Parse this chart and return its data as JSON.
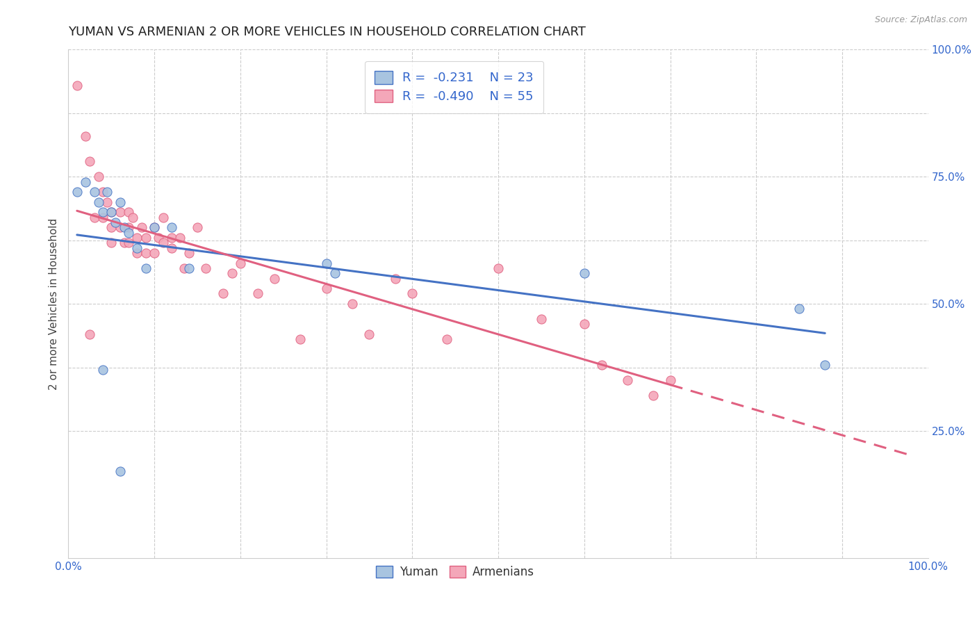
{
  "title": "YUMAN VS ARMENIAN 2 OR MORE VEHICLES IN HOUSEHOLD CORRELATION CHART",
  "source": "Source: ZipAtlas.com",
  "ylabel": "2 or more Vehicles in Household",
  "xlim": [
    0.0,
    1.0
  ],
  "ylim": [
    0.0,
    1.0
  ],
  "blue_R": -0.231,
  "blue_N": 23,
  "pink_R": -0.49,
  "pink_N": 55,
  "blue_color": "#a8c4e0",
  "pink_color": "#f4a7b9",
  "blue_line_color": "#4472c4",
  "pink_line_color": "#e06080",
  "legend_label_blue": "Yuman",
  "legend_label_pink": "Armenians",
  "blue_points_x": [
    0.01,
    0.02,
    0.03,
    0.035,
    0.04,
    0.045,
    0.05,
    0.055,
    0.06,
    0.065,
    0.07,
    0.08,
    0.09,
    0.1,
    0.12,
    0.14,
    0.3,
    0.31,
    0.6,
    0.85,
    0.88,
    0.04,
    0.06
  ],
  "blue_points_y": [
    0.72,
    0.74,
    0.72,
    0.7,
    0.68,
    0.72,
    0.68,
    0.66,
    0.7,
    0.65,
    0.64,
    0.61,
    0.57,
    0.65,
    0.65,
    0.57,
    0.58,
    0.56,
    0.56,
    0.49,
    0.38,
    0.37,
    0.17
  ],
  "pink_points_x": [
    0.01,
    0.02,
    0.025,
    0.03,
    0.035,
    0.04,
    0.04,
    0.045,
    0.05,
    0.05,
    0.05,
    0.06,
    0.06,
    0.065,
    0.07,
    0.07,
    0.07,
    0.075,
    0.08,
    0.08,
    0.085,
    0.09,
    0.09,
    0.1,
    0.1,
    0.105,
    0.11,
    0.11,
    0.12,
    0.12,
    0.13,
    0.135,
    0.14,
    0.15,
    0.16,
    0.18,
    0.19,
    0.2,
    0.22,
    0.24,
    0.27,
    0.3,
    0.33,
    0.35,
    0.38,
    0.4,
    0.44,
    0.5,
    0.55,
    0.6,
    0.62,
    0.65,
    0.68,
    0.7,
    0.025
  ],
  "pink_points_y": [
    0.93,
    0.83,
    0.78,
    0.67,
    0.75,
    0.67,
    0.72,
    0.7,
    0.68,
    0.65,
    0.62,
    0.68,
    0.65,
    0.62,
    0.68,
    0.65,
    0.62,
    0.67,
    0.63,
    0.6,
    0.65,
    0.63,
    0.6,
    0.65,
    0.6,
    0.63,
    0.62,
    0.67,
    0.63,
    0.61,
    0.63,
    0.57,
    0.6,
    0.65,
    0.57,
    0.52,
    0.56,
    0.58,
    0.52,
    0.55,
    0.43,
    0.53,
    0.5,
    0.44,
    0.55,
    0.52,
    0.43,
    0.57,
    0.47,
    0.46,
    0.38,
    0.35,
    0.32,
    0.35,
    0.44
  ],
  "background_color": "#ffffff",
  "grid_color": "#cccccc",
  "title_fontsize": 13,
  "axis_label_fontsize": 11,
  "tick_fontsize": 11,
  "marker_size": 90,
  "line_width": 2.2
}
